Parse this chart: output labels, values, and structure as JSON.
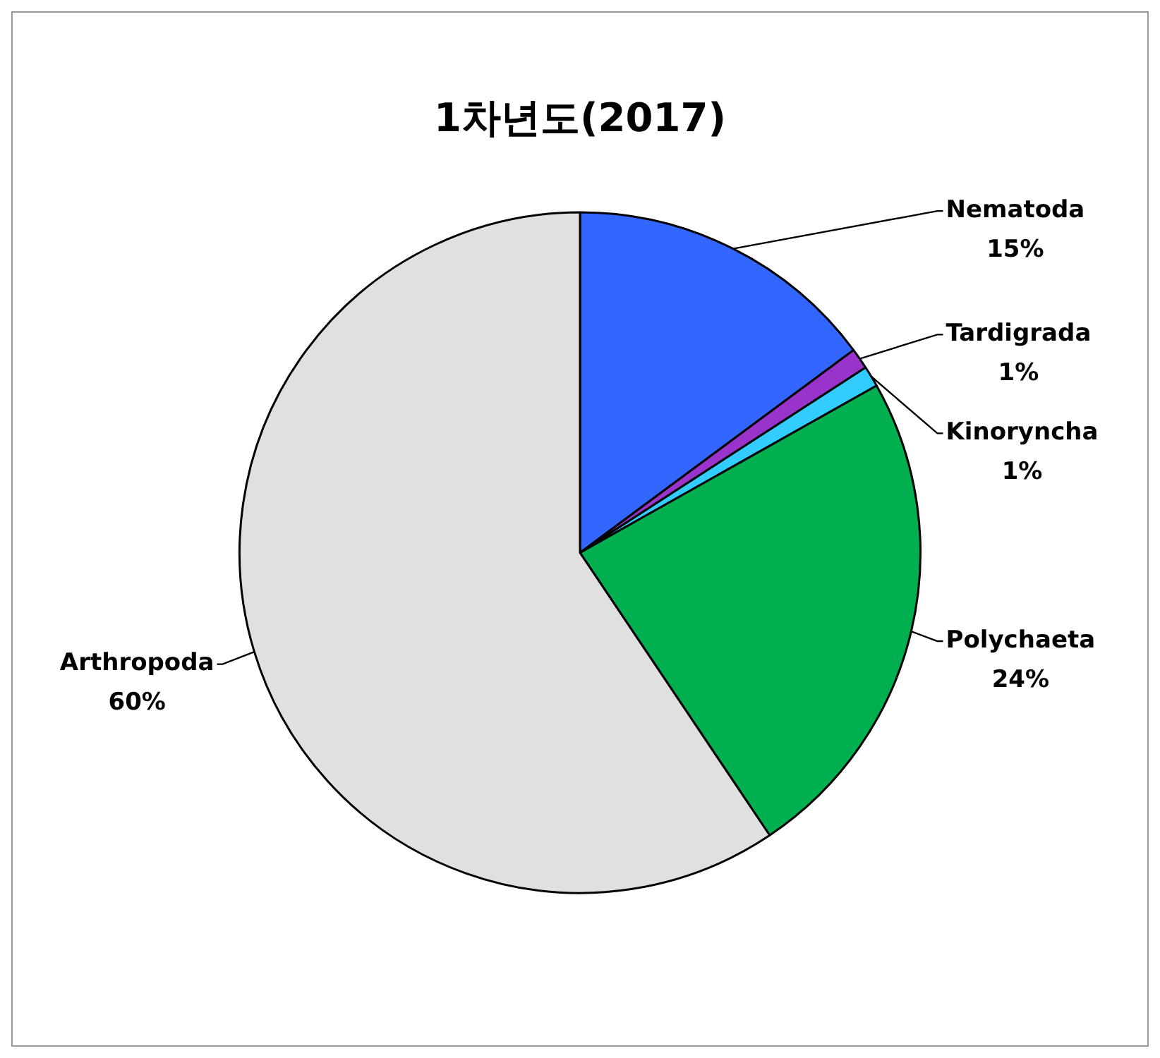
{
  "chart_data": {
    "type": "pie",
    "title": "1차년도(2017)",
    "categories": [
      "Nematoda",
      "Tardigrada",
      "Kinoryncha",
      "Polychaeta",
      "Arthropoda"
    ],
    "values": [
      15,
      1,
      1,
      24,
      60
    ],
    "value_labels": [
      "15%",
      "1%",
      "1%",
      "24%",
      "60%"
    ],
    "colors": [
      "#3366ff",
      "#9933cc",
      "#33ccff",
      "#00b050",
      "#e0e0e0"
    ],
    "legend": false
  }
}
